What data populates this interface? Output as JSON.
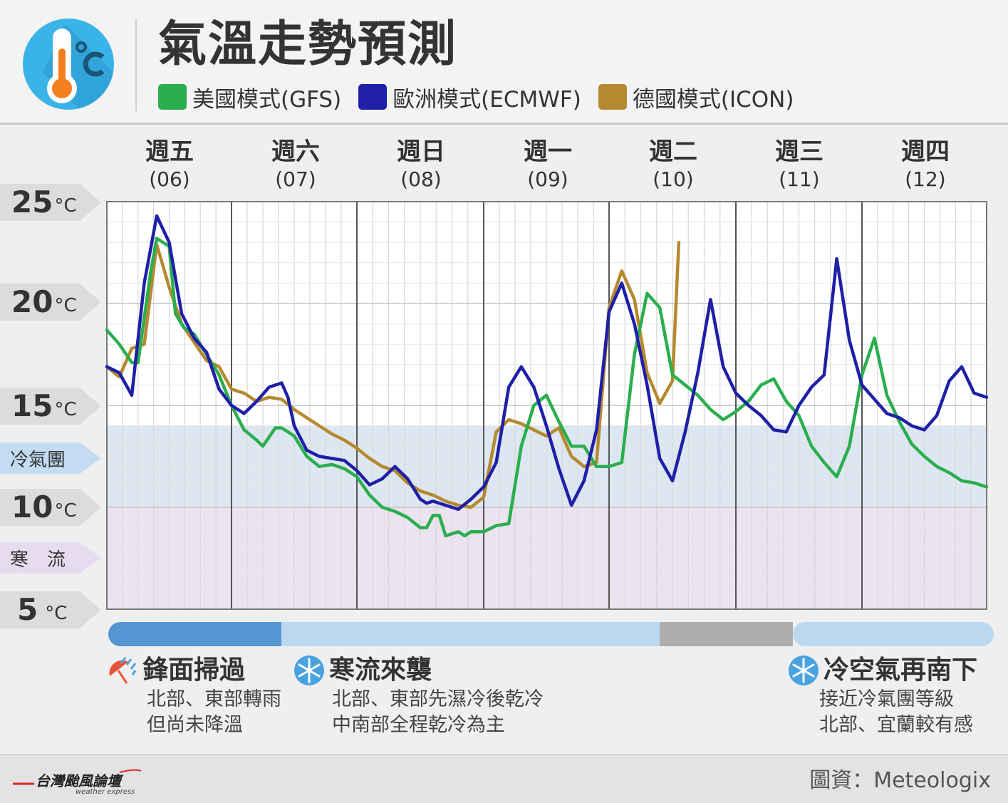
{
  "header": {
    "title": "氣溫走勢預測",
    "legend": [
      {
        "label": "美國模式(GFS)",
        "color": "#2bae4e"
      },
      {
        "label": "歐洲模式(ECMWF)",
        "color": "#1f1fa8"
      },
      {
        "label": "德國模式(ICON)",
        "color": "#b5892f"
      }
    ]
  },
  "days": [
    {
      "name": "週五",
      "date": "(06)"
    },
    {
      "name": "週六",
      "date": "(07)"
    },
    {
      "name": "週日",
      "date": "(08)"
    },
    {
      "name": "週一",
      "date": "(09)"
    },
    {
      "name": "週二",
      "date": "(10)"
    },
    {
      "name": "週三",
      "date": "(11)"
    },
    {
      "name": "週四",
      "date": "(12)"
    }
  ],
  "y_tags": [
    {
      "num": "25",
      "unit": "°C",
      "value": 25
    },
    {
      "num": "20",
      "unit": "°C",
      "value": 20
    },
    {
      "num": "15",
      "unit": "°C",
      "value": 15
    },
    {
      "num": "10",
      "unit": "°C",
      "value": 10
    },
    {
      "num": "5",
      "unit": "°C",
      "value": 5
    }
  ],
  "zones": [
    {
      "label": "冷氣團",
      "from": 10,
      "to": 14,
      "fill": "#dde7f1",
      "tag_color": "#c3dcf2",
      "tag_value": 12.5
    },
    {
      "label": "寒　流",
      "from": 5,
      "to": 10,
      "fill": "#ebe3ef",
      "tag_color": "#e7dcee",
      "tag_value": 7.5
    }
  ],
  "phase_bar": [
    {
      "from_day": -0.1,
      "to_day": 1.4,
      "color": "#5596d2"
    },
    {
      "from_day": 1.4,
      "to_day": 4.4,
      "color": "#bcd8f1"
    },
    {
      "from_day": 4.4,
      "to_day": 5.45,
      "color": "#b0adad"
    },
    {
      "from_day": 5.45,
      "to_day": 7.05,
      "color": "#bcd8f1"
    }
  ],
  "events": [
    {
      "title": "鋒面掃過",
      "lines": [
        "北部、東部轉雨",
        "但尚未降溫"
      ],
      "icon": "rain-umbrella-icon"
    },
    {
      "title": "寒流來襲",
      "lines": [
        "北部、東部先濕冷後乾冷",
        "中南部全程乾冷為主"
      ],
      "icon": "snowflake-icon"
    },
    {
      "title": "冷空氣再南下",
      "lines": [
        "接近冷氣團等級",
        "北部、宜蘭較有感"
      ],
      "icon": "snowflake-icon"
    }
  ],
  "footer": {
    "brand": "台灣颱風論壇",
    "brand_sub": "weather express",
    "source": "圖資：Meteologix"
  },
  "chart_data": {
    "type": "line",
    "xlabel": "",
    "ylabel": "",
    "x_unit": "day offset from 週五(06) 00h",
    "xlim": [
      0,
      7
    ],
    "ylim": [
      5,
      25
    ],
    "grid": true,
    "series": [
      {
        "name": "美國模式(GFS)",
        "color": "#2bae4e",
        "x": [
          0,
          0.1,
          0.2,
          0.25,
          0.35,
          0.4,
          0.5,
          0.55,
          0.62,
          0.7,
          0.8,
          0.9,
          1,
          1.1,
          1.2,
          1.25,
          1.35,
          1.4,
          1.5,
          1.6,
          1.7,
          1.8,
          1.9,
          2,
          2.1,
          2.2,
          2.3,
          2.4,
          2.5,
          2.55,
          2.6,
          2.65,
          2.7,
          2.8,
          2.85,
          2.9,
          3,
          3.1,
          3.2,
          3.3,
          3.4,
          3.5,
          3.6,
          3.7,
          3.8,
          3.9,
          4,
          4.1,
          4.2,
          4.3,
          4.4,
          4.5,
          4.6,
          4.7,
          4.8,
          4.9,
          5,
          5.1,
          5.2,
          5.3,
          5.4,
          5.5,
          5.6,
          5.7,
          5.8,
          5.9,
          6,
          6.1,
          6.2,
          6.3,
          6.4,
          6.5,
          6.6,
          6.7,
          6.8,
          6.9,
          7
        ],
        "y": [
          18.7,
          18,
          17.1,
          17.1,
          21.5,
          23.2,
          22.8,
          19.5,
          18.8,
          18.5,
          17.5,
          16.5,
          15,
          13.8,
          13.3,
          13,
          13.9,
          13.9,
          13.5,
          12.5,
          12,
          12.1,
          11.9,
          11.5,
          10.6,
          10,
          9.8,
          9.5,
          9,
          9,
          9.6,
          9.6,
          8.6,
          8.8,
          8.6,
          8.8,
          8.8,
          9.1,
          9.2,
          13,
          15,
          15.5,
          14.2,
          13,
          13,
          12,
          12,
          12.2,
          17.5,
          20.5,
          19.8,
          16.5,
          16,
          15.5,
          14.8,
          14.3,
          14.7,
          15.2,
          16,
          16.3,
          15.2,
          14.5,
          13,
          12.2,
          11.5,
          13,
          16.5,
          18.3,
          15.5,
          14.2,
          13.1,
          12.5,
          12,
          11.7,
          11.3,
          11.2,
          11
        ]
      },
      {
        "name": "歐洲模式(ECMWF)",
        "color": "#1f1fa8",
        "x": [
          0,
          0.1,
          0.2,
          0.3,
          0.4,
          0.5,
          0.6,
          0.7,
          0.8,
          0.9,
          1,
          1.1,
          1.2,
          1.3,
          1.4,
          1.45,
          1.5,
          1.6,
          1.7,
          1.8,
          1.9,
          2,
          2.1,
          2.2,
          2.3,
          2.4,
          2.5,
          2.55,
          2.6,
          2.7,
          2.8,
          2.9,
          3,
          3.1,
          3.2,
          3.3,
          3.4,
          3.5,
          3.6,
          3.7,
          3.8,
          3.9,
          4,
          4.1,
          4.2,
          4.3,
          4.4,
          4.5,
          4.6,
          4.7,
          4.8,
          4.9,
          5,
          5.1,
          5.2,
          5.3,
          5.4,
          5.5,
          5.6,
          5.7,
          5.8,
          5.9,
          6,
          6.1,
          6.2,
          6.3,
          6.4,
          6.5,
          6.6,
          6.7,
          6.8,
          6.9,
          7
        ],
        "y": [
          16.9,
          16.6,
          15.5,
          21,
          24.3,
          23,
          19.5,
          18.3,
          17.6,
          15.8,
          15,
          14.6,
          15.2,
          15.9,
          16.1,
          15.4,
          14,
          12.8,
          12.5,
          12.4,
          12.3,
          11.8,
          11.1,
          11.4,
          12,
          11.4,
          10.4,
          10.2,
          10.3,
          10.1,
          9.9,
          10.4,
          11,
          12.2,
          15.9,
          16.9,
          15.9,
          14,
          11.9,
          10.1,
          11.3,
          13.8,
          19.6,
          21,
          19,
          16,
          12.4,
          11.3,
          13.7,
          16.6,
          20.2,
          16.9,
          15.6,
          15,
          14.5,
          13.8,
          13.7,
          15,
          15.9,
          16.5,
          22.2,
          18.2,
          16,
          15.3,
          14.6,
          14.4,
          14,
          13.8,
          14.5,
          16.2,
          16.9,
          15.6,
          15.4
        ]
      },
      {
        "name": "德國模式(ICON)",
        "color": "#b5892f",
        "x": [
          0,
          0.1,
          0.2,
          0.3,
          0.4,
          0.5,
          0.6,
          0.7,
          0.8,
          0.9,
          1,
          1.1,
          1.2,
          1.3,
          1.4,
          1.5,
          1.6,
          1.7,
          1.8,
          1.9,
          2,
          2.1,
          2.2,
          2.3,
          2.4,
          2.5,
          2.6,
          2.7,
          2.8,
          2.9,
          3,
          3.1,
          3.2,
          3.3,
          3.4,
          3.5,
          3.6,
          3.7,
          3.8,
          3.9,
          4,
          4.1,
          4.2,
          4.3,
          4.4,
          4.5,
          4.55
        ],
        "y": [
          16.9,
          16.4,
          17.8,
          18,
          22.9,
          20.8,
          19,
          18.1,
          17.2,
          16.9,
          15.8,
          15.6,
          15.2,
          15.4,
          15.3,
          14.8,
          14.4,
          14,
          13.6,
          13.3,
          12.9,
          12.4,
          12,
          11.8,
          11.2,
          10.8,
          10.6,
          10.3,
          10.1,
          10,
          10.5,
          13.7,
          14.3,
          14.1,
          13.8,
          13.5,
          13.9,
          12.5,
          12,
          12.2,
          19.8,
          21.6,
          20.2,
          16.6,
          15.1,
          16.2,
          23
        ]
      }
    ]
  }
}
